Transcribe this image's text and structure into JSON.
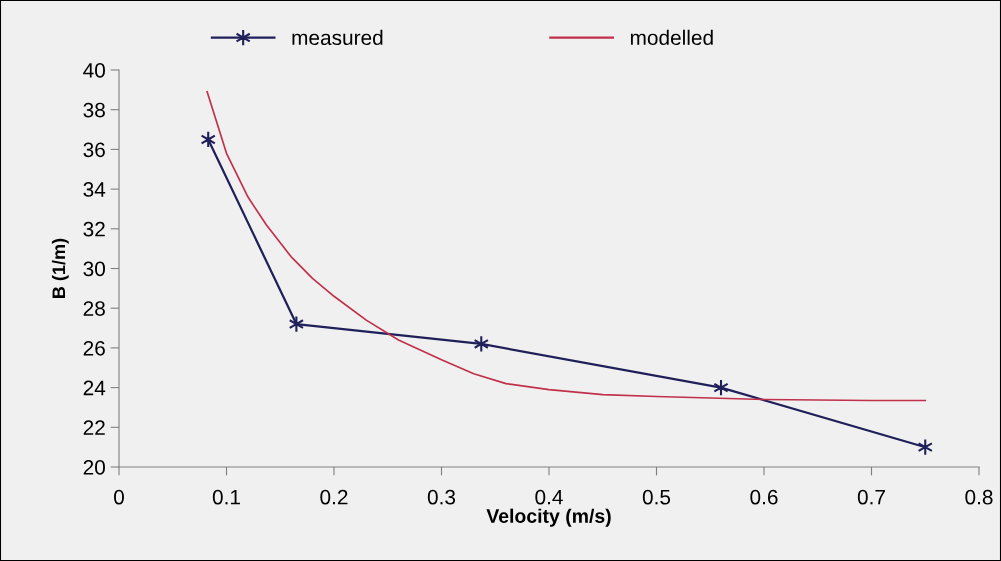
{
  "chart_data": {
    "type": "line",
    "xlabel": "Velocity (m/s)",
    "ylabel": "B (1/m)",
    "xlim": [
      0,
      0.8
    ],
    "xticks": [
      0,
      0.1,
      0.2,
      0.3,
      0.4,
      0.5,
      0.6,
      0.7,
      0.8
    ],
    "ylim": [
      20,
      40
    ],
    "yticks": [
      20,
      22,
      24,
      26,
      28,
      30,
      32,
      34,
      36,
      38,
      40
    ],
    "grid": false,
    "legend": "top",
    "series": [
      {
        "name": "measured",
        "color": "#1f1f5a",
        "marker": "cross",
        "x": [
          0.083,
          0.165,
          0.337,
          0.56,
          0.75
        ],
        "values": [
          36.5,
          27.2,
          26.2,
          24.0,
          21.0
        ]
      },
      {
        "name": "modelled",
        "color": "#c0304a",
        "marker": "none",
        "x": [
          0.082,
          0.1,
          0.12,
          0.137,
          0.16,
          0.18,
          0.2,
          0.23,
          0.26,
          0.3,
          0.33,
          0.36,
          0.4,
          0.45,
          0.5,
          0.6,
          0.7,
          0.75
        ],
        "values": [
          38.9,
          35.8,
          33.6,
          32.2,
          30.6,
          29.5,
          28.6,
          27.4,
          26.4,
          25.4,
          24.7,
          24.2,
          23.9,
          23.65,
          23.55,
          23.4,
          23.35,
          23.35
        ]
      }
    ]
  }
}
